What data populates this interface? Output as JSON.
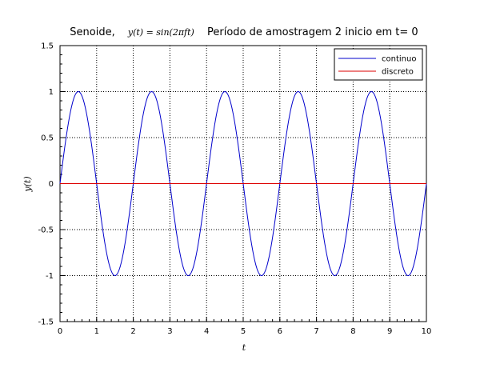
{
  "chart_data": {
    "type": "line",
    "title_prefix": "Senoide,",
    "title_math": "y(t) = sin(2πft)",
    "title_suffix": "Período de amostragem 2 inicio em t= 0",
    "xlabel": "t",
    "ylabel": "y(t)",
    "xlim": [
      0,
      10
    ],
    "ylim": [
      -1.5,
      1.5
    ],
    "xticks": [
      0,
      1,
      2,
      3,
      4,
      5,
      6,
      7,
      8,
      9,
      10
    ],
    "xtick_labels": [
      "0",
      "1",
      "2",
      "3",
      "4",
      "5",
      "6",
      "7",
      "8",
      "9",
      "10"
    ],
    "yticks": [
      -1.5,
      -1,
      -0.5,
      0,
      0.5,
      1,
      1.5
    ],
    "ytick_labels": [
      "-1.5",
      "-1",
      "-0.5",
      "0",
      "0.5",
      "1",
      "1.5"
    ],
    "grid": true,
    "legend_position": "top-right",
    "series": [
      {
        "name": "continuo",
        "color": "#0000cc",
        "function": "sin(2*pi*0.5*t)",
        "frequency": 0.5,
        "x_range": [
          0,
          10
        ]
      },
      {
        "name": "discreto",
        "color": "#dd0000",
        "x": [
          0,
          10
        ],
        "y": [
          0,
          0
        ]
      }
    ]
  }
}
